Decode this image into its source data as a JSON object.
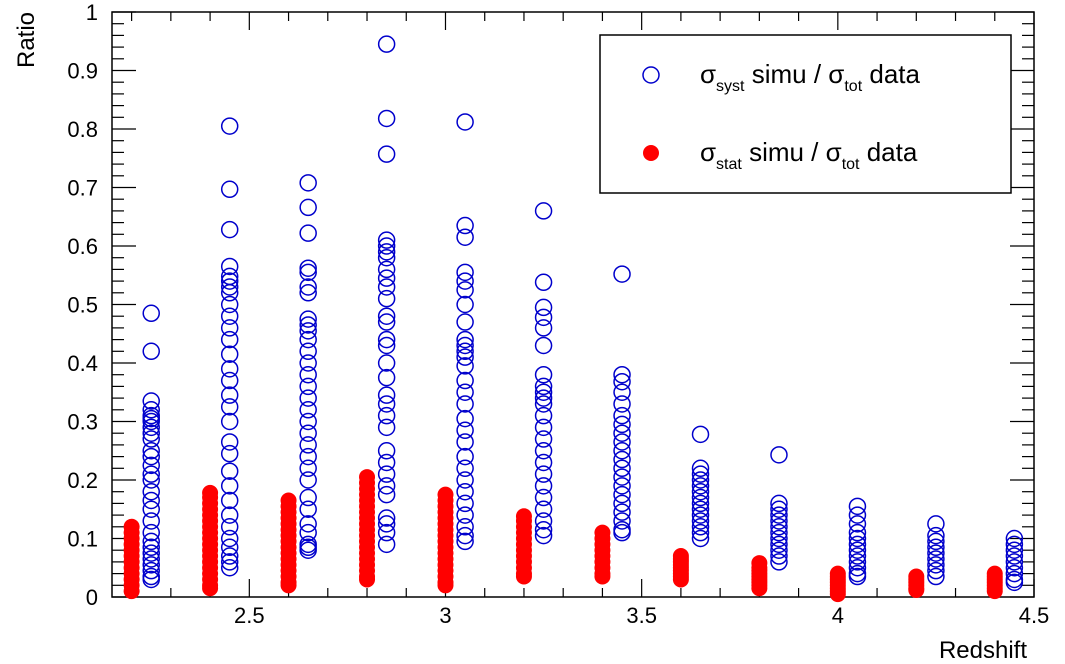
{
  "chart_data": {
    "type": "scatter",
    "title": "",
    "xlabel": "Redshift",
    "ylabel": "Ratio",
    "xlim": [
      2.15,
      4.5
    ],
    "ylim": [
      0,
      1
    ],
    "x_ticks": [
      {
        "value": 2.5,
        "label": "2.5"
      },
      {
        "value": 3.0,
        "label": "3"
      },
      {
        "value": 3.5,
        "label": "3.5"
      },
      {
        "value": 4.0,
        "label": "4"
      },
      {
        "value": 4.5,
        "label": "4.5"
      }
    ],
    "y_ticks": [
      {
        "value": 0,
        "label": "0"
      },
      {
        "value": 0.1,
        "label": "0.1"
      },
      {
        "value": 0.2,
        "label": "0.2"
      },
      {
        "value": 0.3,
        "label": "0.3"
      },
      {
        "value": 0.4,
        "label": "0.4"
      },
      {
        "value": 0.5,
        "label": "0.5"
      },
      {
        "value": 0.6,
        "label": "0.6"
      },
      {
        "value": 0.7,
        "label": "0.7"
      },
      {
        "value": 0.8,
        "label": "0.8"
      },
      {
        "value": 0.9,
        "label": "0.9"
      },
      {
        "value": 1,
        "label": "1"
      }
    ],
    "grid": false,
    "legend_position": "top-right",
    "series": [
      {
        "name_parts": {
          "sym1": "σ",
          "sub1": "syst",
          "mid": " simu / ",
          "sym2": "σ",
          "sub2": "tot",
          "end": " data"
        },
        "marker": "open-circle",
        "color": "#0000cc",
        "groups": [
          {
            "x": 2.25,
            "y": [
              0.485,
              0.42,
              0.335,
              0.32,
              0.31,
              0.305,
              0.3,
              0.29,
              0.28,
              0.27,
              0.25,
              0.24,
              0.225,
              0.21,
              0.2,
              0.18,
              0.165,
              0.15,
              0.13,
              0.11,
              0.095,
              0.085,
              0.075,
              0.065,
              0.055,
              0.045,
              0.035,
              0.03
            ]
          },
          {
            "x": 2.45,
            "y": [
              0.805,
              0.697,
              0.628,
              0.565,
              0.548,
              0.54,
              0.53,
              0.52,
              0.5,
              0.48,
              0.46,
              0.44,
              0.415,
              0.39,
              0.37,
              0.345,
              0.325,
              0.3,
              0.265,
              0.245,
              0.215,
              0.19,
              0.165,
              0.14,
              0.12,
              0.1,
              0.085,
              0.07,
              0.06,
              0.05
            ]
          },
          {
            "x": 2.65,
            "y": [
              0.708,
              0.666,
              0.622,
              0.562,
              0.555,
              0.53,
              0.52,
              0.475,
              0.465,
              0.455,
              0.44,
              0.42,
              0.4,
              0.38,
              0.36,
              0.34,
              0.32,
              0.3,
              0.28,
              0.26,
              0.24,
              0.22,
              0.2,
              0.17,
              0.15,
              0.125,
              0.11,
              0.09,
              0.085,
              0.08
            ]
          },
          {
            "x": 2.85,
            "y": [
              0.945,
              0.818,
              0.757,
              0.61,
              0.6,
              0.59,
              0.58,
              0.56,
              0.545,
              0.53,
              0.51,
              0.48,
              0.47,
              0.44,
              0.43,
              0.4,
              0.375,
              0.345,
              0.33,
              0.31,
              0.29,
              0.25,
              0.23,
              0.21,
              0.19,
              0.175,
              0.135,
              0.125,
              0.11,
              0.09
            ]
          },
          {
            "x": 3.05,
            "y": [
              0.812,
              0.635,
              0.615,
              0.555,
              0.54,
              0.525,
              0.5,
              0.47,
              0.44,
              0.43,
              0.42,
              0.41,
              0.395,
              0.37,
              0.35,
              0.33,
              0.305,
              0.285,
              0.265,
              0.24,
              0.22,
              0.2,
              0.18,
              0.16,
              0.14,
              0.12,
              0.105,
              0.095
            ]
          },
          {
            "x": 3.25,
            "y": [
              0.66,
              0.538,
              0.495,
              0.478,
              0.46,
              0.43,
              0.38,
              0.36,
              0.35,
              0.34,
              0.33,
              0.31,
              0.29,
              0.27,
              0.25,
              0.23,
              0.21,
              0.19,
              0.17,
              0.15,
              0.13,
              0.115,
              0.105
            ]
          },
          {
            "x": 3.45,
            "y": [
              0.552,
              0.38,
              0.368,
              0.35,
              0.33,
              0.31,
              0.295,
              0.28,
              0.265,
              0.25,
              0.235,
              0.22,
              0.205,
              0.19,
              0.175,
              0.16,
              0.145,
              0.13,
              0.115,
              0.11
            ]
          },
          {
            "x": 3.65,
            "y": [
              0.278,
              0.22,
              0.21,
              0.2,
              0.19,
              0.18,
              0.17,
              0.16,
              0.15,
              0.14,
              0.13,
              0.12,
              0.11,
              0.1
            ]
          },
          {
            "x": 3.85,
            "y": [
              0.243,
              0.16,
              0.15,
              0.14,
              0.13,
              0.12,
              0.11,
              0.1,
              0.09,
              0.08,
              0.07,
              0.06
            ]
          },
          {
            "x": 4.05,
            "y": [
              0.155,
              0.14,
              0.125,
              0.11,
              0.1,
              0.09,
              0.08,
              0.07,
              0.06,
              0.05,
              0.04,
              0.035
            ]
          },
          {
            "x": 4.25,
            "y": [
              0.125,
              0.105,
              0.095,
              0.085,
              0.075,
              0.065,
              0.055,
              0.045,
              0.035
            ]
          },
          {
            "x": 4.45,
            "y": [
              0.1,
              0.09,
              0.08,
              0.07,
              0.06,
              0.05,
              0.04,
              0.03,
              0.025
            ]
          }
        ]
      },
      {
        "name_parts": {
          "sym1": "σ",
          "sub1": "stat",
          "mid": " simu / ",
          "sym2": "σ",
          "sub2": "tot",
          "end": " data"
        },
        "marker": "filled-circle",
        "color": "#ff0000",
        "groups": [
          {
            "x": 2.2,
            "y": [
              0.12,
              0.11,
              0.1,
              0.09,
              0.08,
              0.07,
              0.06,
              0.05,
              0.04,
              0.03,
              0.02,
              0.01
            ]
          },
          {
            "x": 2.4,
            "y": [
              0.178,
              0.17,
              0.16,
              0.15,
              0.14,
              0.13,
              0.12,
              0.11,
              0.1,
              0.09,
              0.08,
              0.07,
              0.06,
              0.05,
              0.04,
              0.03,
              0.02,
              0.015
            ]
          },
          {
            "x": 2.6,
            "y": [
              0.165,
              0.155,
              0.145,
              0.135,
              0.125,
              0.115,
              0.105,
              0.095,
              0.085,
              0.075,
              0.065,
              0.055,
              0.045,
              0.035,
              0.025,
              0.02
            ]
          },
          {
            "x": 2.8,
            "y": [
              0.205,
              0.195,
              0.185,
              0.175,
              0.165,
              0.155,
              0.145,
              0.135,
              0.125,
              0.115,
              0.105,
              0.095,
              0.085,
              0.075,
              0.065,
              0.055,
              0.045,
              0.035,
              0.03
            ]
          },
          {
            "x": 3.0,
            "y": [
              0.175,
              0.165,
              0.155,
              0.145,
              0.135,
              0.125,
              0.115,
              0.105,
              0.095,
              0.085,
              0.075,
              0.065,
              0.055,
              0.045,
              0.035,
              0.025,
              0.02
            ]
          },
          {
            "x": 3.2,
            "y": [
              0.138,
              0.13,
              0.12,
              0.11,
              0.1,
              0.09,
              0.08,
              0.07,
              0.06,
              0.05,
              0.04,
              0.035
            ]
          },
          {
            "x": 3.4,
            "y": [
              0.11,
              0.1,
              0.09,
              0.08,
              0.07,
              0.06,
              0.05,
              0.04,
              0.035
            ]
          },
          {
            "x": 3.6,
            "y": [
              0.07,
              0.065,
              0.06,
              0.055,
              0.05,
              0.045,
              0.04,
              0.035,
              0.03
            ]
          },
          {
            "x": 3.8,
            "y": [
              0.058,
              0.05,
              0.045,
              0.04,
              0.035,
              0.03,
              0.025,
              0.02,
              0.015
            ]
          },
          {
            "x": 4.0,
            "y": [
              0.04,
              0.035,
              0.03,
              0.025,
              0.02,
              0.015,
              0.01,
              0.005
            ]
          },
          {
            "x": 4.2,
            "y": [
              0.035,
              0.03,
              0.025,
              0.02,
              0.015,
              0.012
            ]
          },
          {
            "x": 4.4,
            "y": [
              0.04,
              0.035,
              0.03,
              0.025,
              0.02,
              0.015,
              0.01
            ]
          }
        ]
      }
    ]
  }
}
